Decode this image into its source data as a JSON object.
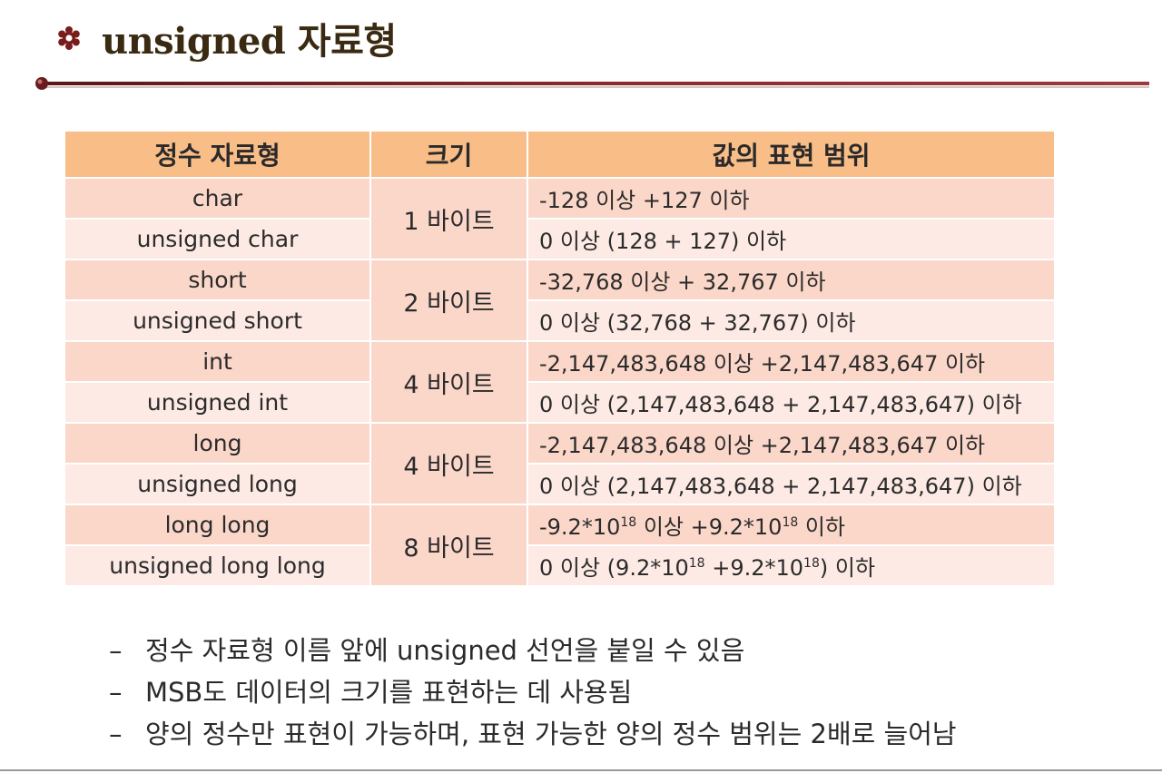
{
  "title": "unsigned 자료형",
  "table": {
    "headers": [
      "정수 자료형",
      "크기",
      "값의 표현 범위"
    ],
    "groups": [
      {
        "size": "1 바이트",
        "rows": [
          {
            "type": "char",
            "range": [
              "-128 이상 +127 이하"
            ]
          },
          {
            "type": "unsigned char",
            "range": [
              "0 이상 (128 + 127) 이하"
            ]
          }
        ]
      },
      {
        "size": "2 바이트",
        "rows": [
          {
            "type": "short",
            "range": [
              "-32,768 이상 + 32,767 이하"
            ]
          },
          {
            "type": "unsigned short",
            "range": [
              "0 이상 (32,768 + 32,767) 이하"
            ]
          }
        ]
      },
      {
        "size": "4 바이트",
        "rows": [
          {
            "type": "int",
            "range": [
              "-2,147,483,648 이상 +2,147,483,647 이하"
            ]
          },
          {
            "type": "unsigned int",
            "range": [
              "0 이상 (2,147,483,648 + 2,147,483,647) 이하"
            ]
          }
        ]
      },
      {
        "size": "4 바이트",
        "rows": [
          {
            "type": "long",
            "range": [
              "-2,147,483,648 이상 +2,147,483,647 이하"
            ]
          },
          {
            "type": "unsigned long",
            "range": [
              "0 이상 (2,147,483,648 + 2,147,483,647) 이하"
            ]
          }
        ]
      },
      {
        "size": "8 바이트",
        "rows": [
          {
            "type": "long long",
            "range": [
              "-9.2*10",
              "18",
              " 이상 +9.2*10",
              "18",
              " 이하"
            ]
          },
          {
            "type": "unsigned long long",
            "range": [
              "0 이상 (9.2*10",
              "18",
              " +9.2*10",
              "18",
              ") 이하"
            ]
          }
        ]
      }
    ]
  },
  "notes": [
    {
      "dash": "–",
      "text": "정수 자료형 이름 앞에 unsigned 선언을 붙일 수 있음"
    },
    {
      "dash": "–",
      "text": "MSB도 데이터의 크기를 표현하는 데 사용됨"
    },
    {
      "dash": "–",
      "text": "양의 정수만 표현이 가능하며, 표현 가능한 양의 정수 범위는 2배로 늘어남"
    }
  ],
  "colors": {
    "header_bg": "#f9bd87",
    "row_dark": "#fbd7ca",
    "row_light": "#fdeae4",
    "accent": "#7a1c1c"
  },
  "icons": {
    "title": "flower-bullet-icon",
    "rule": "divider-rule"
  }
}
